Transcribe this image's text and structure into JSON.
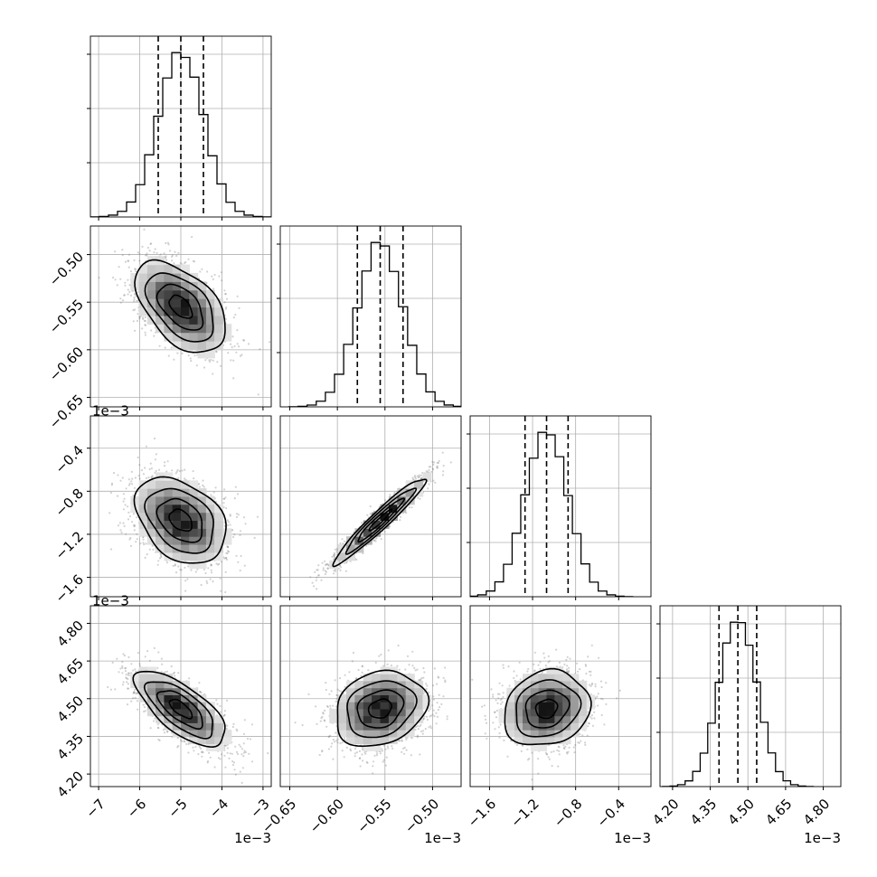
{
  "chart_data": {
    "type": "corner",
    "title": "",
    "grid": true,
    "params": [
      {
        "index": 0,
        "range": [
          -7.2,
          -2.8
        ],
        "ticks": [
          -7,
          -6,
          -5,
          -4,
          -3
        ],
        "tick_labels": [
          "−7",
          "−6",
          "−5",
          "−4",
          "−3"
        ],
        "offset_text": "1e−3",
        "mean": -5.0,
        "sigma": 0.55,
        "quantiles": [
          -5.55,
          -5.0,
          -4.45
        ]
      },
      {
        "index": 1,
        "range": [
          -0.66,
          -0.47
        ],
        "ticks": [
          -0.65,
          -0.6,
          -0.55,
          -0.5
        ],
        "tick_labels": [
          "−0.65",
          "−0.60",
          "−0.55",
          "−0.50"
        ],
        "offset_text": "1e−3",
        "mean": -0.555,
        "sigma": 0.024,
        "quantiles": [
          -0.579,
          -0.555,
          -0.531
        ]
      },
      {
        "index": 2,
        "range": [
          -1.78,
          -0.1
        ],
        "ticks": [
          -1.6,
          -1.2,
          -0.8,
          -0.4
        ],
        "tick_labels": [
          "−1.6",
          "−1.2",
          "−0.8",
          "−0.4"
        ],
        "offset_text": "1e−3",
        "mean": -1.07,
        "sigma": 0.2,
        "quantiles": [
          -1.27,
          -1.07,
          -0.87
        ]
      },
      {
        "index": 3,
        "range": [
          4.15,
          4.87
        ],
        "ticks": [
          4.2,
          4.35,
          4.5,
          4.65,
          4.8
        ],
        "tick_labels": [
          "4.20",
          "4.35",
          "4.50",
          "4.65",
          "4.80"
        ],
        "offset_text": "1e−3",
        "mean": 4.46,
        "sigma": 0.075,
        "quantiles": [
          4.385,
          4.46,
          4.535
        ]
      }
    ],
    "correlations": {
      "1-0": -0.5,
      "2-0": -0.35,
      "2-1": 0.96,
      "3-0": -0.7,
      "3-1": 0.2,
      "3-2": 0.15
    },
    "histogram_bins": 20,
    "contour_levels_sigma": [
      0.5,
      1.0,
      1.5,
      2.0
    ],
    "line_color": "#000000",
    "grid_color": "#b0b0b0",
    "scatter_color": "#7f7f7f"
  }
}
